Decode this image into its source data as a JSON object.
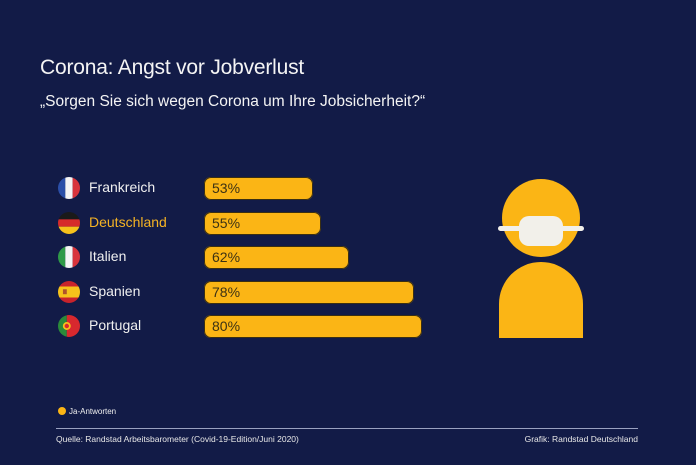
{
  "header": {
    "title": "Corona: Angst vor Jobverlust",
    "subtitle": "„Sorgen Sie sich wegen Corona um Ihre Jobsicherheit?“"
  },
  "chart_data": {
    "type": "bar",
    "orientation": "horizontal",
    "title": "Corona: Angst vor Jobverlust",
    "subtitle": "„Sorgen Sie sich wegen Corona um Ihre Jobsicherheit?“",
    "categories": [
      "Frankreich",
      "Deutschland",
      "Italien",
      "Spanien",
      "Portugal"
    ],
    "series": [
      {
        "name": "Ja-Antworten",
        "values": [
          53,
          55,
          62,
          78,
          80
        ],
        "color": "#fbb515"
      }
    ],
    "data_labels": [
      "53%",
      "55%",
      "62%",
      "78%",
      "80%"
    ],
    "highlighted_category": "Deutschland",
    "unit": "%",
    "xlabel": "",
    "ylabel": "",
    "grid": false,
    "legend": {
      "position": "bottom-left",
      "entries": [
        "Ja-Antworten"
      ]
    },
    "flags": [
      "flag-france",
      "flag-germany",
      "flag-italy",
      "flag-spain",
      "flag-portugal"
    ]
  },
  "legend": {
    "label": "Ja-Antworten"
  },
  "footer": {
    "source": "Quelle: Randstad Arbeitsbarometer (Covid-19-Edition/Juni 2020)",
    "credit": "Grafik: Randstad Deutschland"
  },
  "colors": {
    "background": "#121b47",
    "accent": "#fbb515",
    "mask": "#f2f0ea",
    "highlight_text": "#f5b324"
  }
}
